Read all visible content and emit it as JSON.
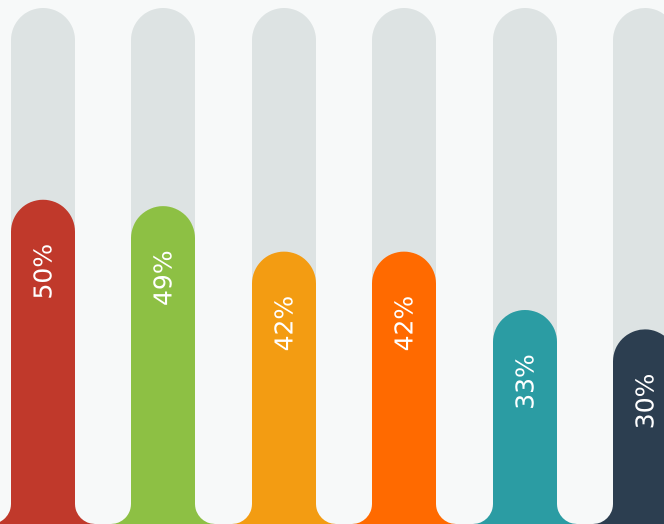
{
  "chart_data": {
    "type": "bar",
    "orientation": "vertical",
    "ylim": [
      0,
      100
    ],
    "grid": false,
    "legend": "none",
    "track_color": "#dde3e3",
    "background_color": "#f7f9f9",
    "label_color": "#ffffff",
    "bars": [
      {
        "value": 50,
        "label": "50%",
        "color": "#c0392b"
      },
      {
        "value": 49,
        "label": "49%",
        "color": "#8dc044"
      },
      {
        "value": 42,
        "label": "42%",
        "color": "#f39c12"
      },
      {
        "value": 42,
        "label": "42%",
        "color": "#ff6a00"
      },
      {
        "value": 33,
        "label": "33%",
        "color": "#2b9ca3"
      },
      {
        "value": 30,
        "label": "30%",
        "color": "#2c3e50"
      }
    ]
  }
}
